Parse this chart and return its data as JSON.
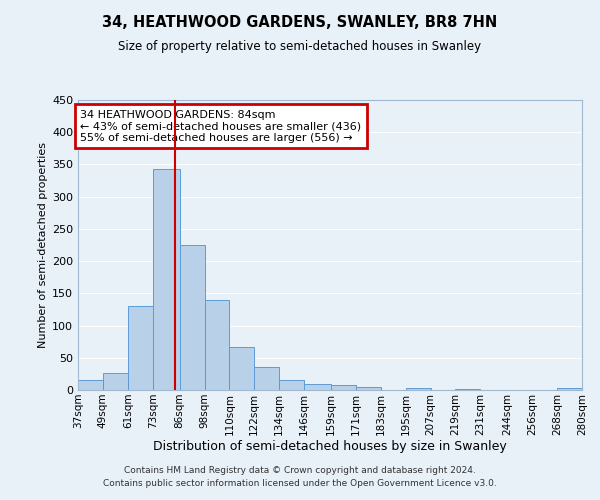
{
  "title": "34, HEATHWOOD GARDENS, SWANLEY, BR8 7HN",
  "subtitle": "Size of property relative to semi-detached houses in Swanley",
  "xlabel": "Distribution of semi-detached houses by size in Swanley",
  "ylabel": "Number of semi-detached properties",
  "bin_edges": [
    37,
    49,
    61,
    73,
    86,
    98,
    110,
    122,
    134,
    146,
    159,
    171,
    183,
    195,
    207,
    219,
    231,
    244,
    256,
    268,
    280
  ],
  "bin_labels": [
    "37sqm",
    "49sqm",
    "61sqm",
    "73sqm",
    "86sqm",
    "98sqm",
    "110sqm",
    "122sqm",
    "134sqm",
    "146sqm",
    "159sqm",
    "171sqm",
    "183sqm",
    "195sqm",
    "207sqm",
    "219sqm",
    "231sqm",
    "244sqm",
    "256sqm",
    "268sqm",
    "280sqm"
  ],
  "counts": [
    15,
    27,
    130,
    343,
    225,
    140,
    67,
    35,
    15,
    9,
    7,
    5,
    0,
    3,
    0,
    2,
    0,
    0,
    0,
    3
  ],
  "bar_color": "#b8d0e8",
  "bar_edge_color": "#5b9bd5",
  "property_line_x": 84,
  "property_line_color": "#cc0000",
  "annotation_title": "34 HEATHWOOD GARDENS: 84sqm",
  "annotation_line1": "← 43% of semi-detached houses are smaller (436)",
  "annotation_line2": "55% of semi-detached houses are larger (556) →",
  "annotation_box_color": "#cc0000",
  "ylim": [
    0,
    450
  ],
  "yticks": [
    0,
    50,
    100,
    150,
    200,
    250,
    300,
    350,
    400,
    450
  ],
  "background_color": "#e8f0f8",
  "grid_color": "#ffffff",
  "footer_line1": "Contains HM Land Registry data © Crown copyright and database right 2024.",
  "footer_line2": "Contains public sector information licensed under the Open Government Licence v3.0."
}
